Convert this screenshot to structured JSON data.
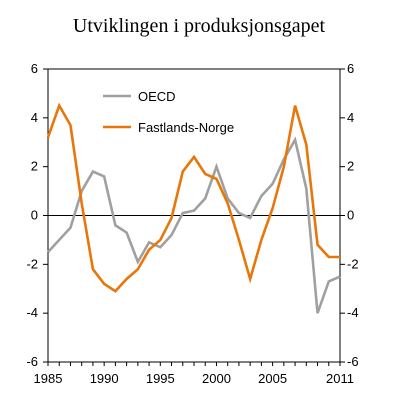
{
  "chart_data": {
    "type": "line",
    "title": "Utviklingen i produksjonsgapet",
    "x": [
      1985,
      1986,
      1987,
      1988,
      1989,
      1990,
      1991,
      1992,
      1993,
      1994,
      1995,
      1996,
      1997,
      1998,
      1999,
      2000,
      2001,
      2002,
      2003,
      2004,
      2005,
      2006,
      2007,
      2008,
      2009,
      2010,
      2011
    ],
    "series": [
      {
        "name": "OECD",
        "color": "#a0a0a0",
        "values": [
          -1.5,
          -1.0,
          -0.5,
          1.0,
          1.8,
          1.6,
          -0.4,
          -0.7,
          -1.9,
          -1.1,
          -1.3,
          -0.8,
          0.1,
          0.2,
          0.7,
          2.0,
          0.7,
          0.1,
          -0.1,
          0.8,
          1.3,
          2.3,
          3.1,
          1.1,
          -4.0,
          -2.7,
          -2.5
        ]
      },
      {
        "name": "Fastlands-Norge",
        "color": "#e8760a",
        "values": [
          3.2,
          4.5,
          3.7,
          0.5,
          -2.2,
          -2.8,
          -3.1,
          -2.6,
          -2.2,
          -1.4,
          -1.0,
          -0.1,
          1.8,
          2.4,
          1.7,
          1.5,
          0.5,
          -1.0,
          -2.6,
          -1.0,
          0.3,
          2.0,
          4.5,
          2.9,
          -1.2,
          -1.7,
          -1.7
        ]
      }
    ],
    "x_tick_labels": [
      "1985",
      "1990",
      "1995",
      "2000",
      "2005",
      "2011"
    ],
    "x_tick_values": [
      1985,
      1990,
      1995,
      2000,
      2005,
      2011
    ],
    "y_tick_labels": [
      "6",
      "4",
      "2",
      "0",
      "-2",
      "-4",
      "-6"
    ],
    "y_tick_values": [
      6,
      4,
      2,
      0,
      -2,
      -4,
      -6
    ],
    "ylim": [
      -6,
      6
    ],
    "xlim": [
      1985,
      2011
    ],
    "zero_line": true,
    "grid": false,
    "legend_position": "top-left"
  }
}
